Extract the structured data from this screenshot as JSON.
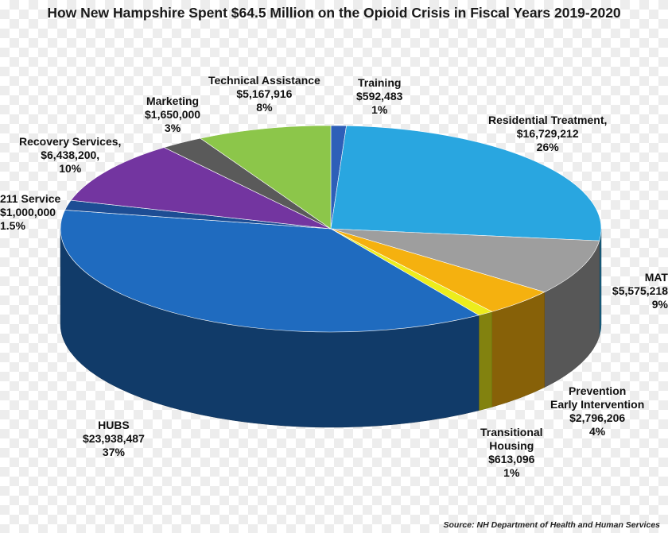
{
  "chart_data": {
    "type": "pie",
    "title": "How New Hampshire Spent $64.5 Million on the Opioid Crisis in Fiscal Years 2019-2020",
    "slices": [
      {
        "label": "Training",
        "amount": "$592,483",
        "percent": "1%",
        "value": 592483,
        "color": "#2e5fb8"
      },
      {
        "label": "Residential Treatment,",
        "amount": "$16,729,212",
        "percent": "26%",
        "value": 16729212,
        "color": "#29a6e0"
      },
      {
        "label": "MAT",
        "amount": "$5,575,218",
        "percent": "9%",
        "value": 5575218,
        "color": "#9e9e9e"
      },
      {
        "label": "Prevention Early Intervention",
        "label_lines": [
          "Prevention",
          "Early Intervention"
        ],
        "amount": "$2,796,206",
        "percent": "4%",
        "value": 2796206,
        "color": "#f5b10f"
      },
      {
        "label": "Transitional Housing",
        "label_lines": [
          "Transitional",
          "Housing"
        ],
        "amount": "$613,096",
        "percent": "1%",
        "value": 613096,
        "color": "#eded1c"
      },
      {
        "label": "HUBS",
        "amount": "$23,938,487",
        "percent": "37%",
        "value": 23938487,
        "color": "#1f6bbf"
      },
      {
        "label": "211 Service",
        "amount": "$1,000,000",
        "percent": "1.5%",
        "value": 1000000,
        "color": "#1d4d94"
      },
      {
        "label": "Recovery Services,",
        "amount": "$6,438,200,",
        "percent": "10%",
        "value": 6438200,
        "color": "#7335a0"
      },
      {
        "label": "Marketing",
        "amount": "$1,650,000",
        "percent": "3%",
        "value": 1650000,
        "color": "#5a5a5a"
      },
      {
        "label": "Technical Assistance",
        "amount": "$5,167,916",
        "percent": "8%",
        "value": 5167916,
        "color": "#8cc64a"
      }
    ],
    "source": "Source: NH Department of Health and Human Services"
  }
}
